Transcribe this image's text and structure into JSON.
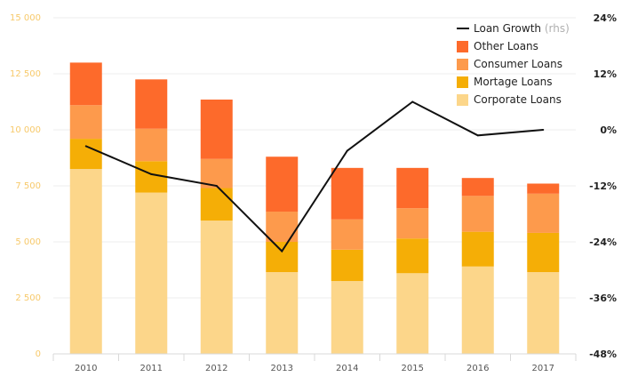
{
  "chart_data": {
    "type": "bar",
    "stacked": true,
    "categories": [
      "2010",
      "2011",
      "2012",
      "2013",
      "2014",
      "2015",
      "2016",
      "2017"
    ],
    "series": [
      {
        "name": "Corporate Loans",
        "color": "#fcd68a",
        "values": [
          8250,
          7200,
          5950,
          3650,
          3250,
          3600,
          3900,
          3650
        ]
      },
      {
        "name": "Mortage Loans",
        "color": "#f5ae06",
        "values": [
          1350,
          1400,
          1450,
          1350,
          1400,
          1550,
          1550,
          1750
        ]
      },
      {
        "name": "Consumer Loans",
        "color": "#fd9a4c",
        "values": [
          1500,
          1450,
          1300,
          1350,
          1350,
          1350,
          1600,
          1750
        ]
      },
      {
        "name": "Other Loans",
        "color": "#fd6a2b",
        "values": [
          1900,
          2200,
          2650,
          2450,
          2300,
          1800,
          800,
          450
        ]
      }
    ],
    "line": {
      "name": "Loan Growth",
      "suffix": "(rhs)",
      "color": "#111111",
      "values": [
        -3.5,
        -9.5,
        -12,
        -26,
        -4.5,
        6,
        -1.2,
        0
      ]
    },
    "y_left": {
      "ticks": [
        "0",
        "2 500",
        "5 000",
        "7 500",
        "10 000",
        "12 500",
        "15 000"
      ],
      "lim": [
        0,
        15000
      ]
    },
    "y_right": {
      "ticks": [
        "-48%",
        "-36%",
        "-24%",
        "-12%",
        "0%",
        "12%",
        "24%"
      ],
      "lim": [
        -48,
        24
      ]
    },
    "grid": true,
    "legend_position": "top-right",
    "title": "",
    "xlabel": "",
    "ylabel": ""
  }
}
